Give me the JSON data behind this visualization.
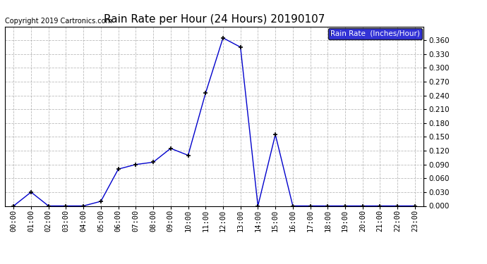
{
  "title": "Rain Rate per Hour (24 Hours) 20190107",
  "copyright": "Copyright 2019 Cartronics.com",
  "legend_label": "Rain Rate  (Inches/Hour)",
  "x_labels": [
    "00:00",
    "01:00",
    "02:00",
    "03:00",
    "04:00",
    "05:00",
    "06:00",
    "07:00",
    "08:00",
    "09:00",
    "10:00",
    "11:00",
    "12:00",
    "13:00",
    "14:00",
    "15:00",
    "16:00",
    "17:00",
    "18:00",
    "19:00",
    "20:00",
    "21:00",
    "22:00",
    "23:00"
  ],
  "x_values": [
    0,
    1,
    2,
    3,
    4,
    5,
    6,
    7,
    8,
    9,
    10,
    11,
    12,
    13,
    14,
    15,
    16,
    17,
    18,
    19,
    20,
    21,
    22,
    23
  ],
  "y_values": [
    0.0,
    0.03,
    0.0,
    0.0,
    0.0,
    0.01,
    0.08,
    0.09,
    0.095,
    0.125,
    0.11,
    0.245,
    0.365,
    0.345,
    0.0,
    0.155,
    0.0,
    0.0,
    0.0,
    0.0,
    0.0,
    0.0,
    0.0,
    0.0
  ],
  "line_color": "#0000CC",
  "marker": "+",
  "marker_size": 5,
  "marker_lw": 1.2,
  "line_width": 1.0,
  "ylim": [
    0.0,
    0.39
  ],
  "yticks": [
    0.0,
    0.03,
    0.06,
    0.09,
    0.12,
    0.15,
    0.18,
    0.21,
    0.24,
    0.27,
    0.3,
    0.33,
    0.36
  ],
  "background_color": "#ffffff",
  "plot_bg_color": "#ffffff",
  "grid_color": "#aaaaaa",
  "title_fontsize": 11,
  "copyright_fontsize": 7,
  "tick_fontsize": 7.5,
  "legend_bg_color": "#0000CC",
  "legend_text_color": "#ffffff",
  "legend_fontsize": 7.5
}
